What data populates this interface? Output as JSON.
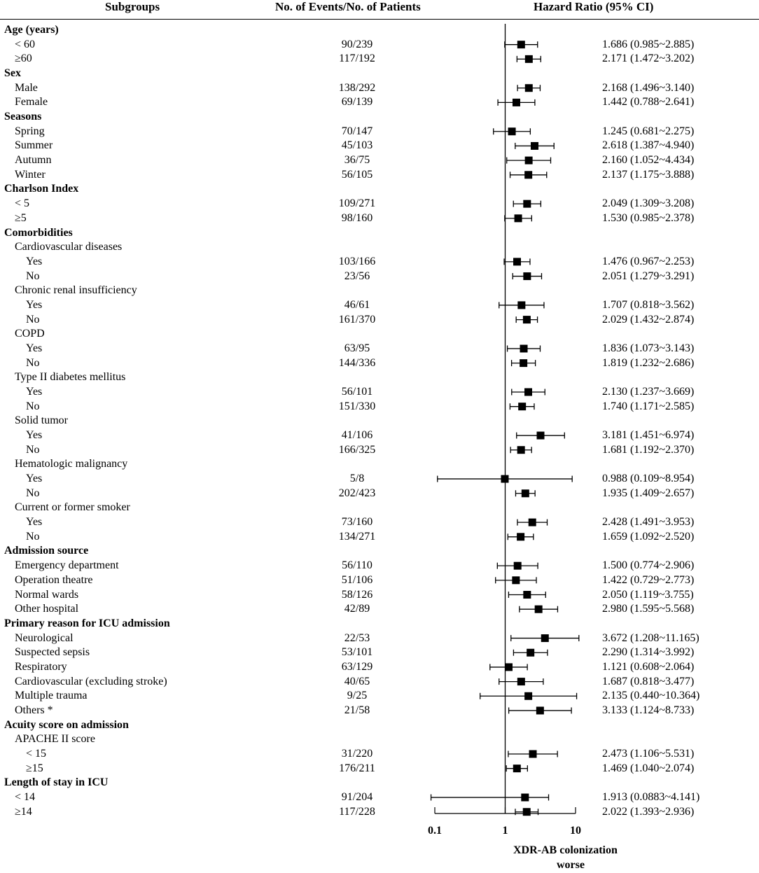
{
  "headers": {
    "subgroups": "Subgroups",
    "events": "No. of Events/No. of Patients",
    "hazard_ratio": "Hazard Ratio  (95% CI)"
  },
  "rows": [
    {
      "label": "Age  (years)",
      "type": "header",
      "indent": 0
    },
    {
      "label": "< 60",
      "indent": 1,
      "events": "90/239",
      "hr_text": "1.686 (0.985~2.885)"
    },
    {
      "label": "≥60",
      "indent": 1,
      "events": "117/192",
      "hr_text": "2.171 (1.472~3.202)"
    },
    {
      "label": "Sex",
      "type": "header",
      "indent": 0
    },
    {
      "label": "Male",
      "indent": 1,
      "events": "138/292",
      "hr_text": "2.168 (1.496~3.140)"
    },
    {
      "label": "Female",
      "indent": 1,
      "events": "69/139",
      "hr_text": "1.442 (0.788~2.641)"
    },
    {
      "label": "Seasons",
      "type": "header",
      "indent": 0
    },
    {
      "label": "Spring",
      "indent": 1,
      "events": "70/147",
      "hr_text": "1.245 (0.681~2.275)"
    },
    {
      "label": "Summer",
      "indent": 1,
      "events": "45/103",
      "hr_text": "2.618 (1.387~4.940)"
    },
    {
      "label": "Autumn",
      "indent": 1,
      "events": "36/75",
      "hr_text": "2.160 (1.052~4.434)"
    },
    {
      "label": "Winter",
      "indent": 1,
      "events": "56/105",
      "hr_text": "2.137 (1.175~3.888)"
    },
    {
      "label": "Charlson Index",
      "type": "header",
      "indent": 0
    },
    {
      "label": "< 5",
      "indent": 1,
      "events": "109/271",
      "hr_text": "2.049 (1.309~3.208)"
    },
    {
      "label": "≥5",
      "indent": 1,
      "events": "98/160",
      "hr_text": "1.530 (0.985~2.378)"
    },
    {
      "label": "Comorbidities",
      "type": "header",
      "indent": 0
    },
    {
      "label": "Cardiovascular diseases",
      "type": "subheader",
      "indent": 1
    },
    {
      "label": "Yes",
      "indent": 2,
      "events": "103/166",
      "hr_text": "1.476 (0.967~2.253)"
    },
    {
      "label": "No",
      "indent": 2,
      "events": "23/56",
      "hr_text": "2.051 (1.279~3.291)"
    },
    {
      "label": "Chronic renal insufficiency",
      "type": "subheader",
      "indent": 1
    },
    {
      "label": "Yes",
      "indent": 2,
      "events": "46/61",
      "hr_text": "1.707 (0.818~3.562)"
    },
    {
      "label": "No",
      "indent": 2,
      "events": "161/370",
      "hr_text": "2.029 (1.432~2.874)"
    },
    {
      "label": "COPD",
      "type": "subheader",
      "indent": 1
    },
    {
      "label": "Yes",
      "indent": 2,
      "events": "63/95",
      "hr_text": "1.836 (1.073~3.143)"
    },
    {
      "label": "No",
      "indent": 2,
      "events": "144/336",
      "hr_text": "1.819 (1.232~2.686)"
    },
    {
      "label": "Type II diabetes mellitus",
      "type": "subheader",
      "indent": 1
    },
    {
      "label": "Yes",
      "indent": 2,
      "events": "56/101",
      "hr_text": "2.130 (1.237~3.669)"
    },
    {
      "label": "No",
      "indent": 2,
      "events": "151/330",
      "hr_text": "1.740 (1.171~2.585)"
    },
    {
      "label": "Solid tumor",
      "type": "subheader",
      "indent": 1
    },
    {
      "label": "Yes",
      "indent": 2,
      "events": "41/106",
      "hr_text": "3.181 (1.451~6.974)"
    },
    {
      "label": "No",
      "indent": 2,
      "events": "166/325",
      "hr_text": "1.681 (1.192~2.370)"
    },
    {
      "label": "Hematologic malignancy",
      "type": "subheader",
      "indent": 1
    },
    {
      "label": "Yes",
      "indent": 2,
      "events": "5/8",
      "hr_text": "0.988 (0.109~8.954)"
    },
    {
      "label": "No",
      "indent": 2,
      "events": "202/423",
      "hr_text": "1.935 (1.409~2.657)"
    },
    {
      "label": "Current or former smoker",
      "type": "subheader",
      "indent": 1
    },
    {
      "label": "Yes",
      "indent": 2,
      "events": "73/160",
      "hr_text": "2.428 (1.491~3.953)"
    },
    {
      "label": "No",
      "indent": 2,
      "events": "134/271",
      "hr_text": "1.659 (1.092~2.520)"
    },
    {
      "label": "Admission source",
      "type": "header",
      "indent": 0
    },
    {
      "label": "Emergency department",
      "indent": 1,
      "events": "56/110",
      "hr_text": "1.500 (0.774~2.906)"
    },
    {
      "label": "Operation theatre",
      "indent": 1,
      "events": "51/106",
      "hr_text": "1.422 (0.729~2.773)"
    },
    {
      "label": "Normal wards",
      "indent": 1,
      "events": "58/126",
      "hr_text": "2.050 (1.119~3.755)"
    },
    {
      "label": "Other hospital",
      "indent": 1,
      "events": "42/89",
      "hr_text": "2.980 (1.595~5.568)"
    },
    {
      "label": "Primary reason for ICU admission",
      "type": "header",
      "indent": 0
    },
    {
      "label": "Neurological",
      "indent": 1,
      "events": "22/53",
      "hr_text": "3.672 (1.208~11.165)"
    },
    {
      "label": "Suspected sepsis",
      "indent": 1,
      "events": "53/101",
      "hr_text": "2.290 (1.314~3.992)"
    },
    {
      "label": "Respiratory",
      "indent": 1,
      "events": "63/129",
      "hr_text": "1.121 (0.608~2.064)"
    },
    {
      "label": "Cardiovascular  (excluding stroke)",
      "indent": 1,
      "events": "40/65",
      "hr_text": "1.687 (0.818~3.477)"
    },
    {
      "label": "Multiple trauma",
      "indent": 1,
      "events": "9/25",
      "hr_text": "2.135 (0.440~10.364)"
    },
    {
      "label": "Others *",
      "indent": 1,
      "events": "21/58",
      "hr_text": "3.133 (1.124~8.733)"
    },
    {
      "label": "Acuity score on admission",
      "type": "header",
      "indent": 0
    },
    {
      "label": "APACHE II score",
      "type": "subheader",
      "indent": 1
    },
    {
      "label": "< 15",
      "indent": 2,
      "events": "31/220",
      "hr_text": "2.473 (1.106~5.531)"
    },
    {
      "label": "≥15",
      "indent": 2,
      "events": "176/211",
      "hr_text": "1.469 (1.040~2.074)"
    },
    {
      "label": "Length of stay in ICU",
      "type": "header",
      "indent": 0
    },
    {
      "label": "< 14",
      "indent": 1,
      "events": "91/204",
      "hr_text": "1.913 (0.0883~4.141)"
    },
    {
      "label": "≥14",
      "indent": 1,
      "events": "117/228",
      "hr_text": "2.022 (1.393~2.936)"
    }
  ],
  "chart_data": {
    "type": "forest",
    "scale": "log10",
    "xlim": [
      0.1,
      10
    ],
    "xticks": [
      "0.1",
      "1",
      "10"
    ],
    "reference_line": 1,
    "xlabel": "XDR-AB colonization",
    "xlabel2": "worse",
    "points": [
      {
        "hr": 1.686,
        "lo": 0.985,
        "hi": 2.885
      },
      {
        "hr": 2.171,
        "lo": 1.472,
        "hi": 3.202
      },
      {
        "hr": 2.168,
        "lo": 1.496,
        "hi": 3.14
      },
      {
        "hr": 1.442,
        "lo": 0.788,
        "hi": 2.641
      },
      {
        "hr": 1.245,
        "lo": 0.681,
        "hi": 2.275
      },
      {
        "hr": 2.618,
        "lo": 1.387,
        "hi": 4.94
      },
      {
        "hr": 2.16,
        "lo": 1.052,
        "hi": 4.434
      },
      {
        "hr": 2.137,
        "lo": 1.175,
        "hi": 3.888
      },
      {
        "hr": 2.049,
        "lo": 1.309,
        "hi": 3.208
      },
      {
        "hr": 1.53,
        "lo": 0.985,
        "hi": 2.378
      },
      {
        "hr": 1.476,
        "lo": 0.967,
        "hi": 2.253
      },
      {
        "hr": 2.051,
        "lo": 1.279,
        "hi": 3.291
      },
      {
        "hr": 1.707,
        "lo": 0.818,
        "hi": 3.562
      },
      {
        "hr": 2.029,
        "lo": 1.432,
        "hi": 2.874
      },
      {
        "hr": 1.836,
        "lo": 1.073,
        "hi": 3.143
      },
      {
        "hr": 1.819,
        "lo": 1.232,
        "hi": 2.686
      },
      {
        "hr": 2.13,
        "lo": 1.237,
        "hi": 3.669
      },
      {
        "hr": 1.74,
        "lo": 1.171,
        "hi": 2.585
      },
      {
        "hr": 3.181,
        "lo": 1.451,
        "hi": 6.974
      },
      {
        "hr": 1.681,
        "lo": 1.192,
        "hi": 2.37
      },
      {
        "hr": 0.988,
        "lo": 0.109,
        "hi": 8.954
      },
      {
        "hr": 1.935,
        "lo": 1.409,
        "hi": 2.657
      },
      {
        "hr": 2.428,
        "lo": 1.491,
        "hi": 3.953
      },
      {
        "hr": 1.659,
        "lo": 1.092,
        "hi": 2.52
      },
      {
        "hr": 1.5,
        "lo": 0.774,
        "hi": 2.906
      },
      {
        "hr": 1.422,
        "lo": 0.729,
        "hi": 2.773
      },
      {
        "hr": 2.05,
        "lo": 1.119,
        "hi": 3.755
      },
      {
        "hr": 2.98,
        "lo": 1.595,
        "hi": 5.568
      },
      {
        "hr": 3.672,
        "lo": 1.208,
        "hi": 11.165
      },
      {
        "hr": 2.29,
        "lo": 1.314,
        "hi": 3.992
      },
      {
        "hr": 1.121,
        "lo": 0.608,
        "hi": 2.064
      },
      {
        "hr": 1.687,
        "lo": 0.818,
        "hi": 3.477
      },
      {
        "hr": 2.135,
        "lo": 0.44,
        "hi": 10.364
      },
      {
        "hr": 3.133,
        "lo": 1.124,
        "hi": 8.733
      },
      {
        "hr": 2.473,
        "lo": 1.106,
        "hi": 5.531
      },
      {
        "hr": 1.469,
        "lo": 1.04,
        "hi": 2.074
      },
      {
        "hr": 1.913,
        "lo": 0.0883,
        "hi": 4.141
      },
      {
        "hr": 2.022,
        "lo": 1.393,
        "hi": 2.936
      }
    ]
  }
}
